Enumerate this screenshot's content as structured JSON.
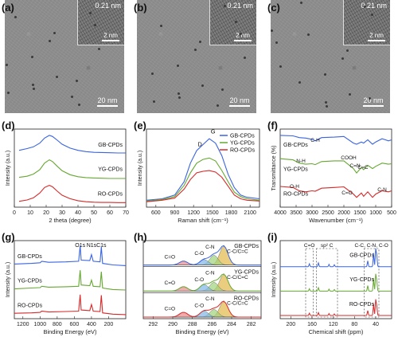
{
  "panels": {
    "a": {
      "letter": "(a)",
      "inset_label": "0.21 nm",
      "inset_scale": "2 nm",
      "scale": "20 nm"
    },
    "b": {
      "letter": "(b)",
      "inset_label": "0.21 nm",
      "inset_scale": "2 nm",
      "scale": "20 nm"
    },
    "c": {
      "letter": "(c)",
      "inset_label": "0.21 nm",
      "inset_scale": "2 nm",
      "scale": "20 nm"
    },
    "d": {
      "letter": "(d)"
    },
    "e": {
      "letter": "(e)"
    },
    "f": {
      "letter": "(f)"
    },
    "g": {
      "letter": "(g)"
    },
    "h": {
      "letter": "(h)"
    },
    "i": {
      "letter": "(i)"
    }
  },
  "colors": {
    "GB": "#3a64e0",
    "YG": "#66a832",
    "RO": "#d42a2a"
  },
  "chart_data": [
    {
      "id": "d",
      "type": "line",
      "xlabel": "2 theta (degree)",
      "ylabel": "Intensity (a.u.)",
      "xlim": [
        0,
        70
      ],
      "xticks": [
        0,
        10,
        20,
        30,
        40,
        50,
        60,
        70
      ],
      "series": [
        {
          "name": "GB-CPDs",
          "color": "#3a64e0",
          "offset": 2.0,
          "x": [
            3,
            8,
            12,
            16,
            19,
            22,
            24,
            27,
            30,
            35,
            40,
            45,
            50,
            55,
            60,
            65,
            70
          ],
          "y": [
            0.22,
            0.3,
            0.38,
            0.55,
            0.78,
            0.9,
            0.85,
            0.68,
            0.5,
            0.32,
            0.22,
            0.16,
            0.13,
            0.12,
            0.11,
            0.1,
            0.1
          ]
        },
        {
          "name": "YG-CPDs",
          "color": "#66a832",
          "offset": 1.0,
          "x": [
            3,
            8,
            12,
            16,
            19,
            22,
            24,
            27,
            30,
            35,
            40,
            45,
            50,
            55,
            60,
            65,
            70
          ],
          "y": [
            0.1,
            0.15,
            0.25,
            0.45,
            0.75,
            0.9,
            0.82,
            0.6,
            0.4,
            0.22,
            0.13,
            0.09,
            0.07,
            0.06,
            0.05,
            0.05,
            0.05
          ]
        },
        {
          "name": "RO-CPDs",
          "color": "#d42a2a",
          "offset": 0.0,
          "x": [
            3,
            8,
            12,
            16,
            19,
            22,
            24,
            27,
            30,
            35,
            40,
            45,
            50,
            55,
            60,
            65,
            70
          ],
          "y": [
            0.12,
            0.18,
            0.28,
            0.5,
            0.75,
            0.85,
            0.78,
            0.58,
            0.4,
            0.24,
            0.15,
            0.1,
            0.08,
            0.07,
            0.07,
            0.06,
            0.06
          ]
        }
      ]
    },
    {
      "id": "e",
      "type": "line",
      "xlabel": "Raman shift (cm⁻¹)",
      "ylabel": "Intensity (a.u.)",
      "xlim": [
        450,
        2250
      ],
      "xticks": [
        600,
        900,
        1200,
        1500,
        1800,
        2100
      ],
      "annotations": [
        "D",
        "G"
      ],
      "series": [
        {
          "name": "GB-CPDs",
          "color": "#3a64e0",
          "x": [
            450,
            700,
            900,
            1050,
            1150,
            1250,
            1350,
            1450,
            1550,
            1650,
            1750,
            1850,
            1950,
            2050,
            2250
          ],
          "y": [
            0.05,
            0.07,
            0.12,
            0.3,
            0.55,
            0.72,
            0.8,
            0.88,
            0.82,
            0.65,
            0.4,
            0.22,
            0.12,
            0.09,
            0.07
          ]
        },
        {
          "name": "YG-CPDs",
          "color": "#66a832",
          "x": [
            450,
            700,
            900,
            1050,
            1150,
            1250,
            1350,
            1450,
            1550,
            1650,
            1750,
            1850,
            1950,
            2050,
            2250
          ],
          "y": [
            0.04,
            0.06,
            0.1,
            0.25,
            0.42,
            0.55,
            0.6,
            0.62,
            0.58,
            0.45,
            0.3,
            0.16,
            0.1,
            0.07,
            0.05
          ]
        },
        {
          "name": "RO-CPDs",
          "color": "#d42a2a",
          "x": [
            450,
            700,
            900,
            1050,
            1150,
            1250,
            1350,
            1450,
            1550,
            1650,
            1750,
            1850,
            1950,
            2050,
            2250
          ],
          "y": [
            0.03,
            0.05,
            0.08,
            0.2,
            0.33,
            0.42,
            0.44,
            0.45,
            0.43,
            0.36,
            0.24,
            0.12,
            0.07,
            0.05,
            0.04
          ]
        }
      ]
    },
    {
      "id": "f",
      "type": "line",
      "xlabel": "Wavenumber (cm⁻¹)",
      "ylabel": "Transmittance (%)",
      "xlim": [
        4000,
        500
      ],
      "xticks": [
        4000,
        3500,
        3000,
        2500,
        2000,
        1500,
        1000,
        500
      ],
      "annotations": [
        "C-H",
        "N-H",
        "COOH",
        "C=C",
        "C=N",
        "O-H",
        "C=O",
        "C-N"
      ],
      "series": [
        {
          "name": "GB-CPDs",
          "color": "#3a64e0",
          "offset": 2.0,
          "x": [
            4000,
            3600,
            3400,
            3200,
            3000,
            2900,
            2700,
            2300,
            2000,
            1700,
            1600,
            1450,
            1380,
            1250,
            1100,
            1000,
            800,
            600,
            500
          ],
          "y": [
            0.9,
            0.88,
            0.8,
            0.78,
            0.72,
            0.65,
            0.8,
            0.82,
            0.85,
            0.55,
            0.5,
            0.6,
            0.55,
            0.7,
            0.5,
            0.6,
            0.75,
            0.65,
            0.7
          ]
        },
        {
          "name": "YG-CPDs",
          "color": "#66a832",
          "offset": 1.0,
          "x": [
            4000,
            3600,
            3400,
            3200,
            3000,
            2900,
            2700,
            2300,
            2000,
            1700,
            1600,
            1450,
            1380,
            1250,
            1100,
            1000,
            800,
            600,
            500
          ],
          "y": [
            0.95,
            0.9,
            0.75,
            0.7,
            0.72,
            0.68,
            0.82,
            0.85,
            0.85,
            0.5,
            0.3,
            0.55,
            0.45,
            0.65,
            0.5,
            0.6,
            0.75,
            0.7,
            0.72
          ]
        },
        {
          "name": "RO-CPDs",
          "color": "#d42a2a",
          "offset": 0.0,
          "x": [
            4000,
            3600,
            3400,
            3200,
            3000,
            2900,
            2700,
            2300,
            2000,
            1700,
            1600,
            1450,
            1380,
            1250,
            1100,
            1000,
            800,
            600,
            500
          ],
          "y": [
            0.8,
            0.75,
            0.6,
            0.55,
            0.6,
            0.58,
            0.72,
            0.75,
            0.78,
            0.45,
            0.3,
            0.5,
            0.35,
            0.55,
            0.3,
            0.45,
            0.6,
            0.55,
            0.6
          ]
        }
      ]
    },
    {
      "id": "g",
      "type": "line",
      "xlabel": "Binding Energy (eV)",
      "ylabel": "Intensity (a.u.)",
      "xlim": [
        1300,
        0
      ],
      "xticks": [
        1200,
        1000,
        800,
        600,
        400,
        200
      ],
      "annotations": [
        "O1s",
        "N1s",
        "C1s"
      ],
      "series": [
        {
          "name": "GB-CPDs",
          "color": "#3a64e0",
          "offset": 2.0,
          "x": [
            1300,
            1100,
            1000,
            980,
            900,
            700,
            550,
            532,
            520,
            420,
            400,
            380,
            300,
            285,
            270,
            150,
            0
          ],
          "y": [
            0.12,
            0.15,
            0.18,
            0.25,
            0.2,
            0.22,
            0.25,
            0.95,
            0.3,
            0.28,
            0.55,
            0.25,
            0.22,
            0.9,
            0.15,
            0.08,
            0.05
          ]
        },
        {
          "name": "YG-CPDs",
          "color": "#66a832",
          "offset": 1.0,
          "x": [
            1300,
            1100,
            1000,
            980,
            900,
            700,
            550,
            532,
            520,
            420,
            400,
            380,
            300,
            285,
            270,
            150,
            0
          ],
          "y": [
            0.1,
            0.14,
            0.16,
            0.22,
            0.18,
            0.2,
            0.22,
            0.95,
            0.28,
            0.25,
            0.5,
            0.22,
            0.2,
            0.88,
            0.14,
            0.07,
            0.05
          ]
        },
        {
          "name": "RO-CPDs",
          "color": "#d42a2a",
          "offset": 0.0,
          "x": [
            1300,
            1100,
            1000,
            980,
            900,
            700,
            550,
            532,
            520,
            420,
            400,
            380,
            300,
            285,
            270,
            150,
            0
          ],
          "y": [
            0.1,
            0.12,
            0.14,
            0.2,
            0.16,
            0.18,
            0.2,
            0.95,
            0.25,
            0.22,
            0.5,
            0.2,
            0.18,
            0.92,
            0.12,
            0.06,
            0.04
          ]
        }
      ]
    },
    {
      "id": "h",
      "type": "area",
      "xlabel": "Binding Energy (eV)",
      "ylabel": "",
      "xlim": [
        293,
        281
      ],
      "xticks": [
        292,
        290,
        288,
        286,
        284,
        282
      ],
      "subpanels": [
        {
          "name": "GB-CPDs",
          "color": "#3a64e0",
          "labels": [
            "C-C/C=C",
            "C-N",
            "C-O",
            "C=O"
          ],
          "peaks": [
            284.8,
            285.8,
            286.8,
            288.9
          ],
          "heights": [
            0.85,
            0.45,
            0.25,
            0.18
          ]
        },
        {
          "name": "YG-CPDs",
          "color": "#66a832",
          "labels": [
            "C-C/C=C",
            "C-N",
            "C-O",
            "C=O"
          ],
          "peaks": [
            284.8,
            285.8,
            286.8,
            288.9
          ],
          "heights": [
            0.75,
            0.4,
            0.3,
            0.2
          ]
        },
        {
          "name": "RO-CPDs",
          "color": "#d42a2a",
          "labels": [
            "C-C/C=C",
            "C-N",
            "C-O",
            "C=O"
          ],
          "peaks": [
            284.8,
            285.8,
            286.8,
            288.9
          ],
          "heights": [
            0.7,
            0.35,
            0.28,
            0.22
          ]
        }
      ]
    },
    {
      "id": "i",
      "type": "line",
      "xlabel": "Chemical shift (ppm)",
      "ylabel": "Intensity (a.u.)",
      "xlim": [
        220,
        10
      ],
      "xticks": [
        200,
        160,
        120,
        80,
        40
      ],
      "annotations": [
        "C=O",
        "sp² C",
        "C-C, C-N, C-O"
      ],
      "series": [
        {
          "name": "GB-CPDs",
          "color": "#3a64e0",
          "offset": 2.0,
          "peaks": [
            165,
            148,
            128,
            118,
            55,
            44,
            40,
            38
          ],
          "heights": [
            0.15,
            0.2,
            0.12,
            0.1,
            0.3,
            0.7,
            0.9,
            0.6
          ]
        },
        {
          "name": "YG-CPDs",
          "color": "#66a832",
          "offset": 1.0,
          "peaks": [
            165,
            148,
            128,
            118,
            55,
            44,
            40,
            38
          ],
          "heights": [
            0.12,
            0.18,
            0.1,
            0.08,
            0.28,
            0.65,
            0.85,
            0.55
          ]
        },
        {
          "name": "RO-CPDs",
          "color": "#d42a2a",
          "offset": 0.0,
          "peaks": [
            165,
            148,
            128,
            118,
            55,
            44,
            40,
            38
          ],
          "heights": [
            0.12,
            0.15,
            0.1,
            0.08,
            0.25,
            0.6,
            0.8,
            0.5
          ]
        }
      ]
    }
  ]
}
